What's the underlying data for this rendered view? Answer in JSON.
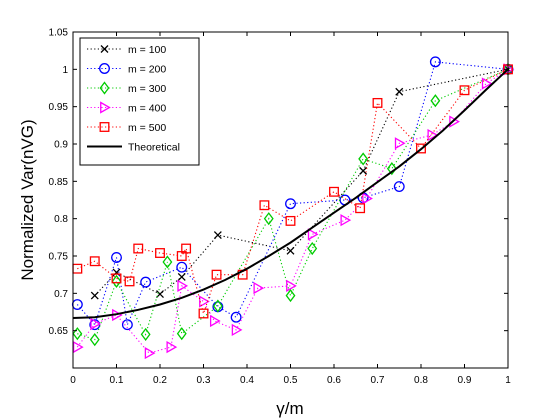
{
  "chart_data": {
    "type": "scatter",
    "xlabel": "γ/m",
    "ylabel": "Normalized Var(nVG)",
    "xlim": [
      0,
      1
    ],
    "ylim": [
      0.6,
      1.05
    ],
    "xticks": [
      0,
      0.1,
      0.2,
      0.3,
      0.4,
      0.5,
      0.6,
      0.7,
      0.8,
      0.9,
      1
    ],
    "xtick_labels": [
      "0",
      "0.1",
      "0.2",
      "0.3",
      "0.4",
      "0.5",
      "0.6",
      "0.7",
      "0.8",
      "0.9",
      "1"
    ],
    "yticks": [
      0.65,
      0.7,
      0.75,
      0.8,
      0.85,
      0.9,
      0.95,
      1,
      1.05
    ],
    "ytick_labels": [
      "0.65",
      "0.7",
      "0.75",
      "0.8",
      "0.85",
      "0.9",
      "0.95",
      "1",
      "1.05"
    ],
    "legend_position": "top-left",
    "series": [
      {
        "name": "m = 100",
        "color": "#000000",
        "marker": "x",
        "linestyle": "dotted",
        "x": [
          0.05,
          0.1,
          0.2,
          0.25,
          0.333,
          0.5,
          0.667,
          0.75,
          1.0
        ],
        "y": [
          0.697,
          0.728,
          0.699,
          0.722,
          0.778,
          0.757,
          0.864,
          0.97,
          1.0
        ]
      },
      {
        "name": "m = 200",
        "color": "#0000ff",
        "marker": "circle",
        "linestyle": "dotted",
        "x": [
          0.01,
          0.05,
          0.1,
          0.125,
          0.167,
          0.25,
          0.333,
          0.375,
          0.5,
          0.625,
          0.667,
          0.75,
          0.833,
          1.0
        ],
        "y": [
          0.685,
          0.658,
          0.748,
          0.658,
          0.715,
          0.735,
          0.682,
          0.668,
          0.82,
          0.825,
          0.828,
          0.843,
          1.01,
          1.0
        ]
      },
      {
        "name": "m = 300",
        "color": "#00cc00",
        "marker": "diamond",
        "linestyle": "dotted",
        "x": [
          0.01,
          0.05,
          0.1,
          0.167,
          0.217,
          0.25,
          0.333,
          0.45,
          0.5,
          0.55,
          0.667,
          0.733,
          0.833,
          1.0
        ],
        "y": [
          0.646,
          0.638,
          0.716,
          0.645,
          0.742,
          0.646,
          0.683,
          0.8,
          0.697,
          0.76,
          0.88,
          0.867,
          0.958,
          1.0
        ]
      },
      {
        "name": "m = 400",
        "color": "#ff00ff",
        "marker": "triangle-right",
        "linestyle": "dotted",
        "x": [
          0.01,
          0.05,
          0.1,
          0.175,
          0.225,
          0.25,
          0.3,
          0.325,
          0.375,
          0.425,
          0.5,
          0.55,
          0.625,
          0.675,
          0.75,
          0.825,
          0.875,
          0.95,
          1.0
        ],
        "y": [
          0.628,
          0.659,
          0.671,
          0.62,
          0.628,
          0.71,
          0.689,
          0.663,
          0.651,
          0.707,
          0.71,
          0.779,
          0.798,
          0.827,
          0.901,
          0.912,
          0.93,
          0.981,
          1.0
        ]
      },
      {
        "name": "m = 500",
        "color": "#ff0000",
        "marker": "square",
        "linestyle": "dotted",
        "x": [
          0.01,
          0.05,
          0.1,
          0.13,
          0.15,
          0.2,
          0.25,
          0.26,
          0.3,
          0.33,
          0.39,
          0.44,
          0.5,
          0.6,
          0.66,
          0.7,
          0.8,
          0.9,
          1.0
        ],
        "y": [
          0.733,
          0.743,
          0.72,
          0.716,
          0.76,
          0.754,
          0.75,
          0.76,
          0.673,
          0.725,
          0.725,
          0.818,
          0.797,
          0.836,
          0.814,
          0.955,
          0.894,
          0.972,
          1.0
        ]
      },
      {
        "name": "Theoretical",
        "color": "#000000",
        "marker": "none",
        "linestyle": "solid",
        "x": [
          0,
          0.05,
          0.1,
          0.15,
          0.2,
          0.25,
          0.3,
          0.35,
          0.4,
          0.45,
          0.5,
          0.55,
          0.6,
          0.65,
          0.7,
          0.75,
          0.8,
          0.85,
          0.9,
          0.95,
          1.0
        ],
        "y": [
          0.667,
          0.668,
          0.672,
          0.678,
          0.685,
          0.694,
          0.705,
          0.718,
          0.733,
          0.75,
          0.768,
          0.788,
          0.808,
          0.828,
          0.849,
          0.87,
          0.893,
          0.918,
          0.945,
          0.973,
          1.0
        ]
      }
    ]
  }
}
